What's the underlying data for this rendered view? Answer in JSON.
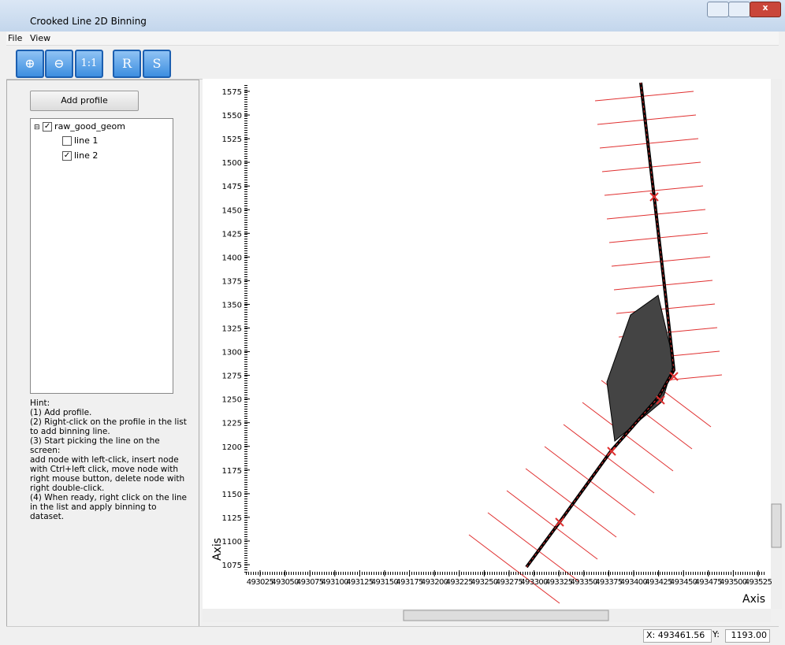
{
  "window": {
    "title": "Crooked Line 2D Binning"
  },
  "menu": [
    "File",
    "View"
  ],
  "toolbar": [
    "1:1",
    "R",
    "S"
  ],
  "panel": {
    "button": "Add profile",
    "tree": {
      "root": "raw_good_geom",
      "children": [
        "line 1",
        "line 2"
      ]
    },
    "hint": [
      "Hint:",
      "(1) Add profile.",
      "(2) Right-click on the profile in the list",
      "to add binning line.",
      "(3) Start picking the line on the",
      "screen:",
      "add node with left-click, insert node",
      "with Ctrl+left click, move node with",
      "right mouse button, delete node with",
      "right double-click.",
      "(4) When ready, right click on the line",
      "in the list and apply binning to",
      "dataset."
    ]
  },
  "plot": {
    "yticks": [
      1075,
      1100,
      1125,
      1150,
      1175,
      1200,
      1225,
      1250,
      1275,
      1300,
      1325,
      1350,
      1375,
      1400,
      1425,
      1450,
      1475,
      1500,
      1525,
      1550,
      1575
    ],
    "xticks": [
      493025,
      493050,
      493075,
      493100,
      493125,
      493150,
      493175,
      493200,
      493225,
      493250,
      493275,
      493300,
      493325,
      493350,
      493375,
      493400,
      493425,
      493450,
      493475,
      493500,
      493525
    ],
    "xlabel": "Axis",
    "ylabel": "Axis"
  },
  "status": {
    "x": "X: 493461.56",
    "ylabel": "Y:",
    "y": "1193.00"
  }
}
